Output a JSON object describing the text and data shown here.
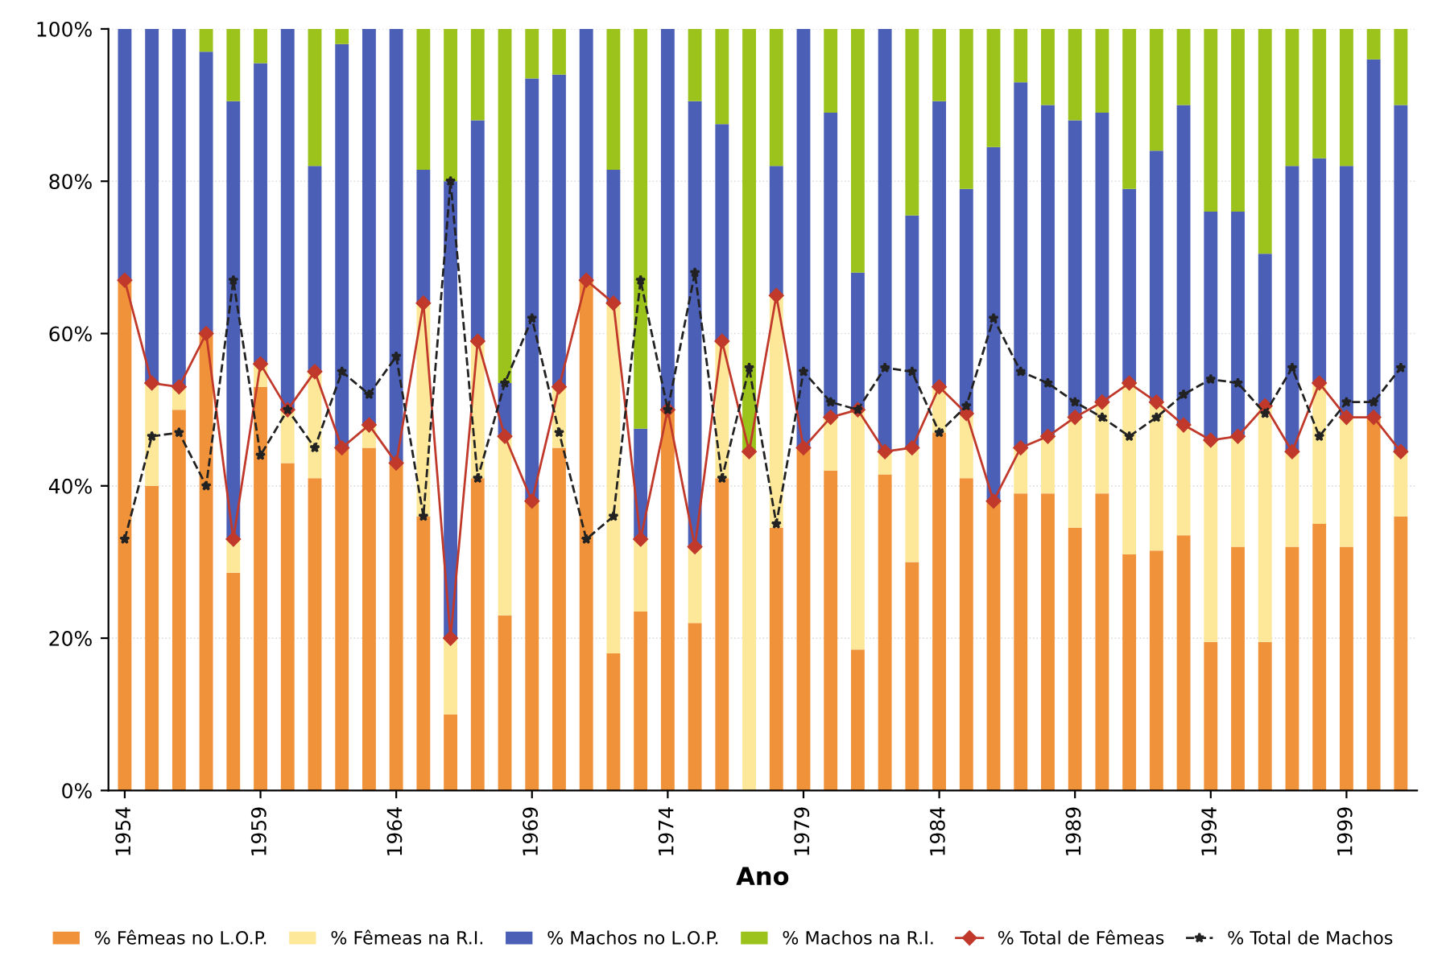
{
  "chart_data": {
    "type": "bar",
    "stacked": true,
    "xlabel": "Ano",
    "categories": [
      "1954",
      null,
      null,
      null,
      null,
      "1959",
      null,
      null,
      null,
      null,
      "1964",
      null,
      null,
      null,
      null,
      "1969",
      null,
      null,
      null,
      null,
      "1974",
      null,
      null,
      null,
      null,
      "1979",
      null,
      null,
      null,
      null,
      "1984",
      null,
      null,
      null,
      null,
      "1989",
      null,
      null,
      null,
      null,
      "1994",
      null,
      null,
      null,
      null,
      "1999",
      null,
      null
    ],
    "ylim": [
      0,
      100
    ],
    "yticks": [
      {
        "value": 0,
        "label": "0%"
      },
      {
        "value": 20,
        "label": "20%"
      },
      {
        "value": 40,
        "label": "40%"
      },
      {
        "value": 60,
        "label": "60%"
      },
      {
        "value": 80,
        "label": "80%"
      },
      {
        "value": 100,
        "label": "100%"
      }
    ],
    "grid": "y",
    "legend": "bottom",
    "series": [
      {
        "name": "% Fêmeas no L.O.P.",
        "color": "#f0923a",
        "values": [
          67,
          40,
          50,
          60,
          28.6,
          53,
          43,
          41,
          45,
          45,
          43,
          36,
          10,
          41,
          23,
          38,
          45,
          67,
          18,
          23.5,
          50,
          22,
          41,
          0,
          34.5,
          45,
          42,
          18.5,
          41.5,
          30,
          47,
          41,
          38,
          39,
          39,
          34.5,
          39,
          31,
          31.5,
          33.5,
          19.5,
          32,
          19.5,
          32,
          35,
          32,
          49,
          36
        ]
      },
      {
        "name": "% Fêmeas na R.I.",
        "color": "#fde89a",
        "values": [
          0,
          13.5,
          3,
          0,
          4.4,
          3,
          7,
          14,
          0,
          3,
          0,
          28,
          10,
          18,
          23.5,
          0,
          8,
          0,
          46,
          9.5,
          0,
          10,
          18,
          44.5,
          30.5,
          0,
          7,
          31.5,
          3,
          15,
          6,
          8.5,
          0,
          6,
          7.5,
          14.5,
          12,
          22.5,
          19.5,
          14.5,
          26.5,
          14.5,
          31,
          12.5,
          18.5,
          17,
          0,
          8.5
        ]
      },
      {
        "name": "% Machos no L.O.P.",
        "color": "#4a5fb5",
        "values": [
          33,
          46.5,
          47,
          37,
          57.5,
          39.5,
          50,
          27,
          53,
          52,
          57,
          17.5,
          60,
          29,
          7,
          55.5,
          41,
          33,
          17.5,
          14.5,
          50,
          58.5,
          28.5,
          0,
          17,
          55,
          40,
          18,
          55.5,
          30.5,
          37.5,
          29.5,
          46.5,
          48,
          43.5,
          39,
          38,
          25.5,
          33,
          42,
          30,
          29.5,
          20,
          37.5,
          29.5,
          33,
          47,
          45.5
        ]
      },
      {
        "name": "% Machos na R.I.",
        "color": "#9bc31c",
        "values": [
          0,
          0,
          0,
          3,
          9.5,
          4.5,
          0,
          18,
          2,
          0,
          0,
          18.5,
          20,
          12,
          46.5,
          6.5,
          6,
          0,
          18.5,
          52.5,
          0,
          9.5,
          12.5,
          55.5,
          18,
          0,
          11,
          32,
          0,
          24.5,
          9.5,
          21,
          15.5,
          7,
          10,
          12,
          11,
          21,
          16,
          10,
          24,
          24,
          29.5,
          18,
          17,
          18,
          4,
          10
        ]
      },
      {
        "name": "% Total de Fêmeas",
        "type": "line",
        "color": "#c0392b",
        "marker": "diamond",
        "line_style": "solid",
        "values": [
          67,
          53.5,
          53,
          60,
          33,
          56,
          50,
          55,
          45,
          48,
          43,
          64,
          20,
          59,
          46.5,
          38,
          53,
          67,
          64,
          33,
          50,
          32,
          59,
          44.5,
          65,
          45,
          49,
          50,
          44.5,
          45,
          53,
          49.5,
          38,
          45,
          46.5,
          49,
          51,
          53.5,
          51,
          48,
          46,
          46.5,
          50.5,
          44.5,
          53.5,
          49,
          49,
          44.5
        ]
      },
      {
        "name": "% Total de Machos",
        "type": "line",
        "color": "#222222",
        "marker": "star",
        "line_style": "dashed",
        "values": [
          33,
          46.5,
          47,
          40,
          67,
          44,
          50,
          45,
          55,
          52,
          57,
          36,
          80,
          41,
          53.5,
          62,
          47,
          33,
          36,
          67,
          50,
          68,
          41,
          55.5,
          35,
          55,
          51,
          50,
          55.5,
          55,
          47,
          50.5,
          62,
          55,
          53.5,
          51,
          49,
          46.5,
          49,
          52,
          54,
          53.5,
          49.5,
          55.5,
          46.5,
          51,
          51,
          55.5
        ]
      }
    ]
  }
}
